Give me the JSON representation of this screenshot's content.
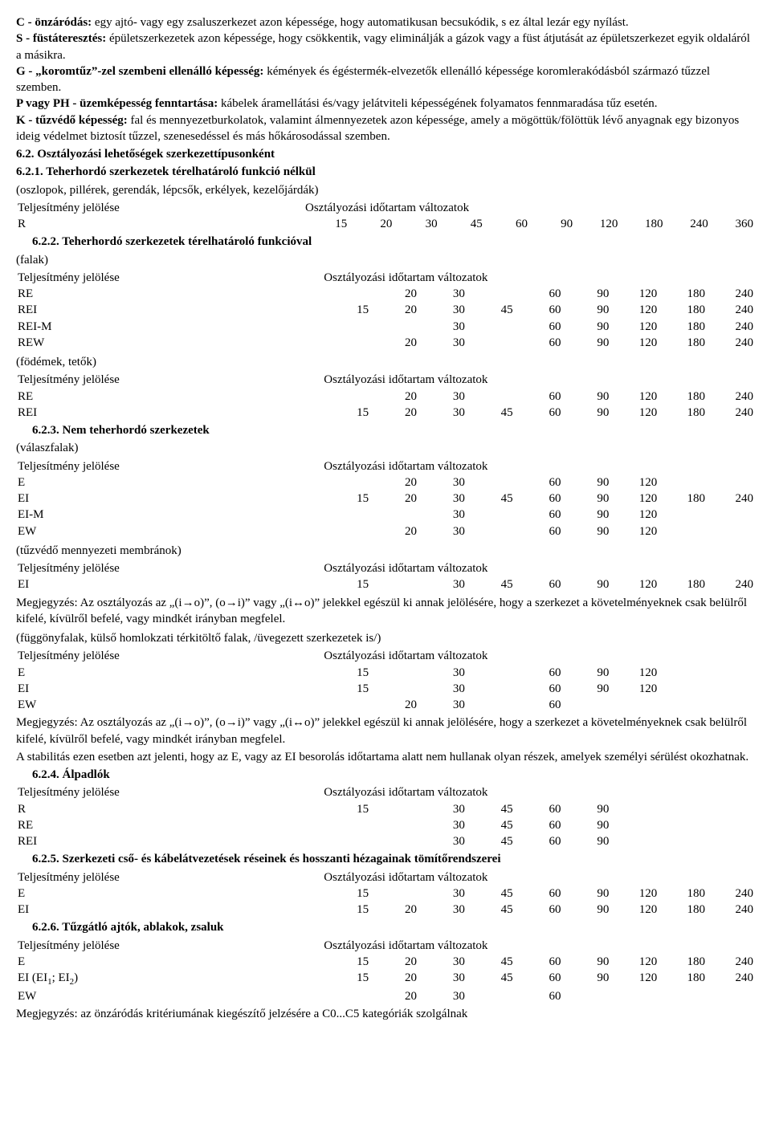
{
  "definitions": [
    {
      "term": "C - önzáródás:",
      "text": " egy ajtó- vagy egy zsaluszerkezet azon képessége, hogy automatikusan becsukódik, s ez által lezár egy nyílást."
    },
    {
      "term": "S - füstáteresztés:",
      "text": " épületszerkezetek azon képessége, hogy csökkentik, vagy eliminálják a gázok vagy a füst átjutását az épületszerkezet egyik oldaláról a másikra."
    },
    {
      "term": "G - „koromtűz”-zel szembeni ellenálló képesség:",
      "text": " kémények és égéstermék-elvezetők ellenálló képessége koromlerakódásból származó tűzzel szemben."
    },
    {
      "term": "P vagy PH - üzemképesség fenntartása:",
      "text": " kábelek áramellátási és/vagy jelátviteli képességének folyamatos fennmaradása tűz esetén."
    },
    {
      "term": "K - tűzvédő képesség:",
      "text": " fal és mennyezetburkolatok, valamint álmennyezetek azon képessége, amely a mögöttük/fölöttük lévő anyagnak egy bizonyos ideig védelmet biztosít tűzzel, szenesedéssel és más hőkárosodással szemben."
    }
  ],
  "headings": {
    "h62": "6.2. Osztályozási lehetőségek szerkezettípusonként",
    "h621": "6.2.1. Teherhordó szerkezetek térelhatároló funkció nélkül",
    "h622": "6.2.2. Teherhordó szerkezetek térelhatároló funkcióval",
    "h623": "6.2.3. Nem teherhordó szerkezetek",
    "h624": "6.2.4. Álpadlók",
    "h625": "6.2.5. Szerkezeti cső- és kábelátvezetések réseinek és hosszanti hézagainak tömítőrendszerei",
    "h626": "6.2.6. Tűzgátló ajtók, ablakok, zsaluk"
  },
  "colheaders": {
    "perf": "Teljesítmény jelölése",
    "time": "Osztályozási időtartam változatok"
  },
  "subtitles": {
    "s621": "(oszlopok, pillérek, gerendák, lépcsők, erkélyek, kezelőjárdák)",
    "s622a": "(falak)",
    "s622b": "(födémek, tetők)",
    "s623a": "(válaszfalak)",
    "s623b": "(tűzvédő mennyezeti membránok)",
    "s623c": "(függönyfalak, külső homlokzati térkitöltő falak, /üvegezett szerkezetek is/)"
  },
  "tables": {
    "t621": [
      {
        "label": "R",
        "v": [
          "15",
          "20",
          "30",
          "45",
          "60",
          "90",
          "120",
          "180",
          "240",
          "360"
        ]
      }
    ],
    "t622a": [
      {
        "label": "RE",
        "v": [
          "",
          "20",
          "30",
          "",
          "60",
          "90",
          "120",
          "180",
          "240"
        ]
      },
      {
        "label": "REI",
        "v": [
          "15",
          "20",
          "30",
          "45",
          "60",
          "90",
          "120",
          "180",
          "240"
        ]
      },
      {
        "label": "REI-M",
        "v": [
          "",
          "",
          "30",
          "",
          "60",
          "90",
          "120",
          "180",
          "240"
        ]
      },
      {
        "label": "REW",
        "v": [
          "",
          "20",
          "30",
          "",
          "60",
          "90",
          "120",
          "180",
          "240"
        ]
      }
    ],
    "t622b": [
      {
        "label": "RE",
        "v": [
          "",
          "20",
          "30",
          "",
          "60",
          "90",
          "120",
          "180",
          "240"
        ]
      },
      {
        "label": "REI",
        "v": [
          "15",
          "20",
          "30",
          "45",
          "60",
          "90",
          "120",
          "180",
          "240"
        ]
      }
    ],
    "t623a": [
      {
        "label": "E",
        "v": [
          "",
          "20",
          "30",
          "",
          "60",
          "90",
          "120",
          "",
          ""
        ]
      },
      {
        "label": "EI",
        "v": [
          "15",
          "20",
          "30",
          "45",
          "60",
          "90",
          "120",
          "180",
          "240"
        ]
      },
      {
        "label": "EI-M",
        "v": [
          "",
          "",
          "30",
          "",
          "60",
          "90",
          "120",
          "",
          ""
        ]
      },
      {
        "label": "EW",
        "v": [
          "",
          "20",
          "30",
          "",
          "60",
          "90",
          "120",
          "",
          ""
        ]
      }
    ],
    "t623b": [
      {
        "label": "EI",
        "v": [
          "15",
          "",
          "30",
          "45",
          "60",
          "90",
          "120",
          "180",
          "240"
        ]
      }
    ],
    "t623c": [
      {
        "label": "E",
        "v": [
          "15",
          "",
          "30",
          "",
          "60",
          "90",
          "120",
          "",
          ""
        ]
      },
      {
        "label": "EI",
        "v": [
          "15",
          "",
          "30",
          "",
          "60",
          "90",
          "120",
          "",
          ""
        ]
      },
      {
        "label": "EW",
        "v": [
          "",
          "20",
          "30",
          "",
          "60",
          "",
          "",
          "",
          ""
        ]
      }
    ],
    "t624": [
      {
        "label": "R",
        "v": [
          "15",
          "",
          "30",
          "45",
          "60",
          "90",
          "",
          "",
          ""
        ]
      },
      {
        "label": "RE",
        "v": [
          "",
          "",
          "30",
          "45",
          "60",
          "90",
          "",
          "",
          ""
        ]
      },
      {
        "label": "REI",
        "v": [
          "",
          "",
          "30",
          "45",
          "60",
          "90",
          "",
          "",
          ""
        ]
      }
    ],
    "t625": [
      {
        "label": "E",
        "v": [
          "15",
          "",
          "30",
          "45",
          "60",
          "90",
          "120",
          "180",
          "240"
        ]
      },
      {
        "label": "EI",
        "v": [
          "15",
          "20",
          "30",
          "45",
          "60",
          "90",
          "120",
          "180",
          "240"
        ]
      }
    ],
    "t626": [
      {
        "label": "E",
        "sub": "",
        "v": [
          "15",
          "20",
          "30",
          "45",
          "60",
          "90",
          "120",
          "180",
          "240"
        ]
      },
      {
        "label_html": "EI (EI<sub>1</sub>; EI<sub>2</sub>)",
        "v": [
          "15",
          "20",
          "30",
          "45",
          "60",
          "90",
          "120",
          "180",
          "240"
        ]
      },
      {
        "label": "EW",
        "v": [
          "",
          "20",
          "30",
          "",
          "60",
          "",
          "",
          "",
          ""
        ]
      }
    ]
  },
  "notes": {
    "n623b": "Megjegyzés: Az osztályozás az „(i→o)”, (o→i)” vagy „(i↔o)” jelekkel egészül ki annak jelölésére, hogy a szerkezet a követelményeknek csak belülről kifelé, kívülről befelé, vagy mindkét irányban megfelel.",
    "n623c1": "Megjegyzés: Az osztályozás az „(i→o)”, (o→i)” vagy „(i↔o)” jelekkel egészül ki annak jelölésére, hogy a szerkezet a követelményeknek csak belülről kifelé, kívülről befelé, vagy mindkét irányban megfelel.",
    "n623c2": "A stabilitás ezen esetben azt jelenti, hogy az E, vagy az EI besorolás időtartama alatt nem hullanak olyan részek, amelyek személyi sérülést okozhatnak.",
    "n626": "Megjegyzés: az önzáródás kritériumának kiegészítő jelzésére a C0...C5 kategóriák szolgálnak"
  }
}
